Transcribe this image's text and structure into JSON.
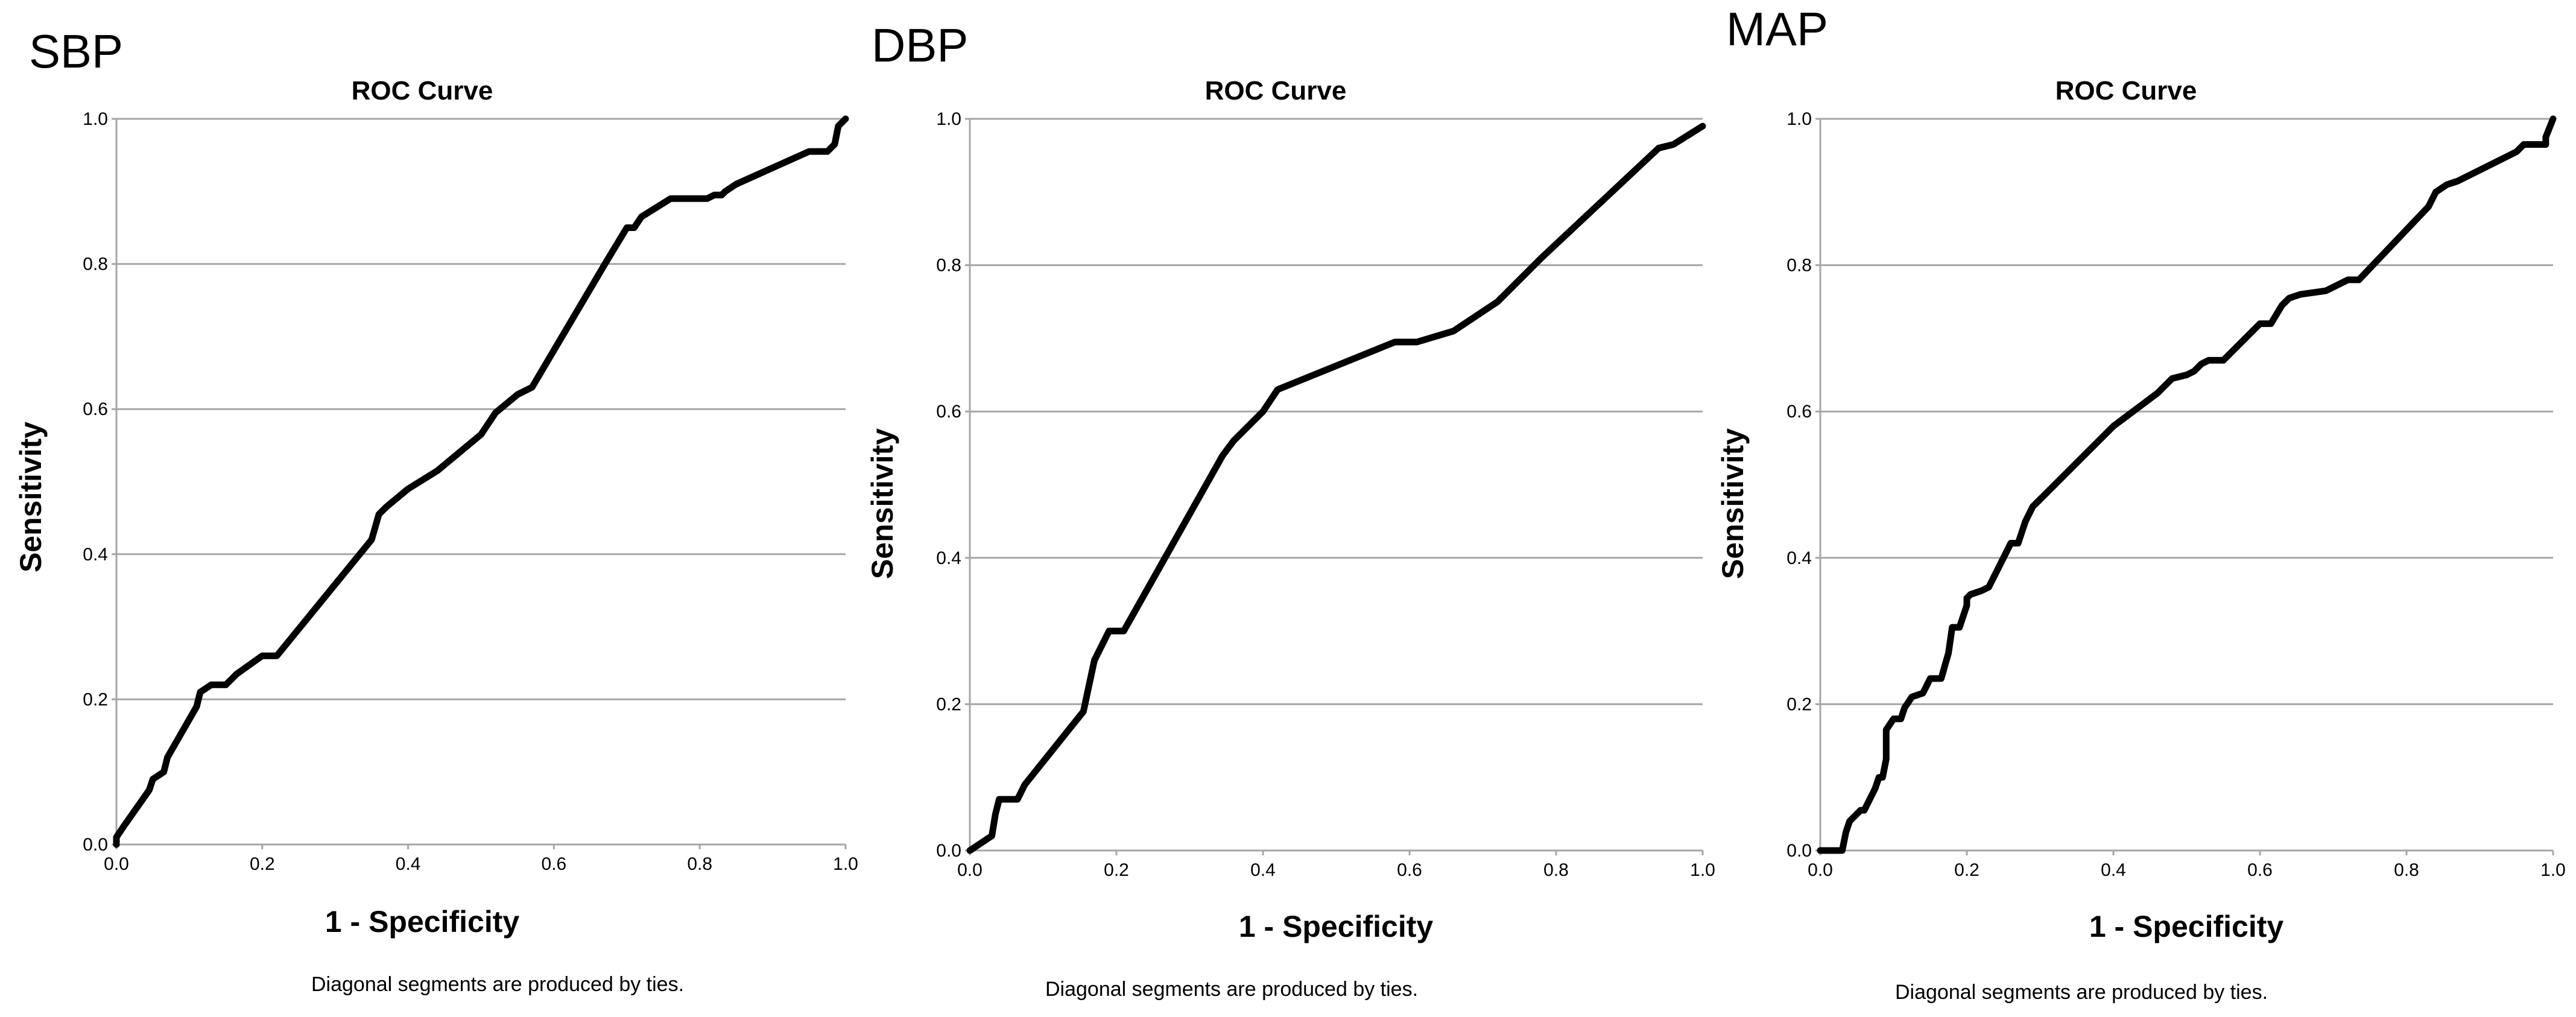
{
  "chart_data": [
    {
      "type": "line",
      "panel_label": "SBP",
      "title": "ROC Curve",
      "xlabel": "1 - Specificity",
      "ylabel": "Sensitivity",
      "footnote": "Diagonal segments are produced by ties.",
      "xlim": [
        0,
        1
      ],
      "ylim": [
        0,
        1
      ],
      "x_ticks": [
        "0.0",
        "0.2",
        "0.4",
        "0.6",
        "0.8",
        "1.0"
      ],
      "y_ticks": [
        "0.0",
        "0.2",
        "0.4",
        "0.6",
        "0.8",
        "1.0"
      ],
      "grid": "horizontal",
      "series": [
        {
          "name": "SBP",
          "x": [
            0.0,
            0.0,
            0.01,
            0.045,
            0.05,
            0.065,
            0.07,
            0.11,
            0.115,
            0.13,
            0.15,
            0.165,
            0.2,
            0.22,
            0.35,
            0.36,
            0.37,
            0.4,
            0.44,
            0.5,
            0.52,
            0.55,
            0.57,
            0.67,
            0.7,
            0.71,
            0.72,
            0.76,
            0.81,
            0.82,
            0.83,
            0.835,
            0.85,
            0.95,
            0.975,
            0.985,
            0.99,
            1.0
          ],
          "y": [
            0.0,
            0.01,
            0.025,
            0.075,
            0.09,
            0.1,
            0.12,
            0.19,
            0.21,
            0.22,
            0.22,
            0.235,
            0.26,
            0.26,
            0.42,
            0.455,
            0.465,
            0.49,
            0.515,
            0.565,
            0.595,
            0.62,
            0.63,
            0.8,
            0.85,
            0.85,
            0.865,
            0.89,
            0.89,
            0.895,
            0.895,
            0.9,
            0.91,
            0.955,
            0.955,
            0.965,
            0.99,
            1.0
          ]
        }
      ]
    },
    {
      "type": "line",
      "panel_label": "DBP",
      "title": "ROC Curve",
      "xlabel": "1 - Specificity",
      "ylabel": "Sensitivity",
      "footnote": "Diagonal segments are produced by ties.",
      "xlim": [
        0,
        1
      ],
      "ylim": [
        0,
        1
      ],
      "x_ticks": [
        "0.0",
        "0.2",
        "0.4",
        "0.6",
        "0.8",
        "1.0"
      ],
      "y_ticks": [
        "0.0",
        "0.2",
        "0.4",
        "0.6",
        "0.8",
        "1.0"
      ],
      "grid": "horizontal",
      "series": [
        {
          "name": "DBP",
          "x": [
            0.0,
            0.03,
            0.035,
            0.04,
            0.05,
            0.065,
            0.075,
            0.155,
            0.17,
            0.19,
            0.21,
            0.345,
            0.36,
            0.4,
            0.42,
            0.58,
            0.61,
            0.66,
            0.72,
            0.78,
            0.94,
            0.96,
            1.0
          ],
          "y": [
            0.0,
            0.02,
            0.05,
            0.07,
            0.07,
            0.07,
            0.09,
            0.19,
            0.26,
            0.3,
            0.3,
            0.54,
            0.56,
            0.6,
            0.63,
            0.695,
            0.695,
            0.71,
            0.75,
            0.81,
            0.96,
            0.965,
            0.99
          ]
        }
      ]
    },
    {
      "type": "line",
      "panel_label": "MAP",
      "title": "ROC Curve",
      "xlabel": "1 - Specificity",
      "ylabel": "Sensitivity",
      "footnote": "Diagonal segments are produced by ties.",
      "xlim": [
        0,
        1
      ],
      "ylim": [
        0,
        1
      ],
      "x_ticks": [
        "0.0",
        "0.2",
        "0.4",
        "0.6",
        "0.8",
        "1.0"
      ],
      "y_ticks": [
        "0.0",
        "0.2",
        "0.4",
        "0.6",
        "0.8",
        "1.0"
      ],
      "grid": "horizontal",
      "series": [
        {
          "name": "MAP",
          "x": [
            0.0,
            0.02,
            0.03,
            0.035,
            0.04,
            0.055,
            0.06,
            0.075,
            0.08,
            0.085,
            0.09,
            0.09,
            0.1,
            0.11,
            0.115,
            0.125,
            0.14,
            0.145,
            0.15,
            0.165,
            0.175,
            0.18,
            0.19,
            0.2,
            0.2,
            0.205,
            0.22,
            0.23,
            0.245,
            0.26,
            0.27,
            0.28,
            0.285,
            0.29,
            0.3,
            0.31,
            0.4,
            0.42,
            0.44,
            0.46,
            0.48,
            0.5,
            0.51,
            0.52,
            0.53,
            0.55,
            0.565,
            0.6,
            0.615,
            0.63,
            0.64,
            0.655,
            0.69,
            0.71,
            0.72,
            0.735,
            0.83,
            0.84,
            0.855,
            0.87,
            0.95,
            0.96,
            0.99,
            0.99,
            1.0
          ],
          "y": [
            0.0,
            0.0,
            0.0,
            0.025,
            0.04,
            0.055,
            0.055,
            0.085,
            0.1,
            0.1,
            0.125,
            0.165,
            0.18,
            0.18,
            0.195,
            0.21,
            0.215,
            0.225,
            0.235,
            0.235,
            0.27,
            0.305,
            0.305,
            0.335,
            0.345,
            0.35,
            0.355,
            0.36,
            0.39,
            0.42,
            0.42,
            0.45,
            0.46,
            0.47,
            0.48,
            0.49,
            0.58,
            0.595,
            0.61,
            0.625,
            0.645,
            0.65,
            0.655,
            0.665,
            0.67,
            0.67,
            0.685,
            0.72,
            0.72,
            0.745,
            0.755,
            0.76,
            0.765,
            0.775,
            0.78,
            0.78,
            0.88,
            0.9,
            0.91,
            0.915,
            0.955,
            0.965,
            0.965,
            0.975,
            1.0
          ]
        }
      ]
    }
  ]
}
